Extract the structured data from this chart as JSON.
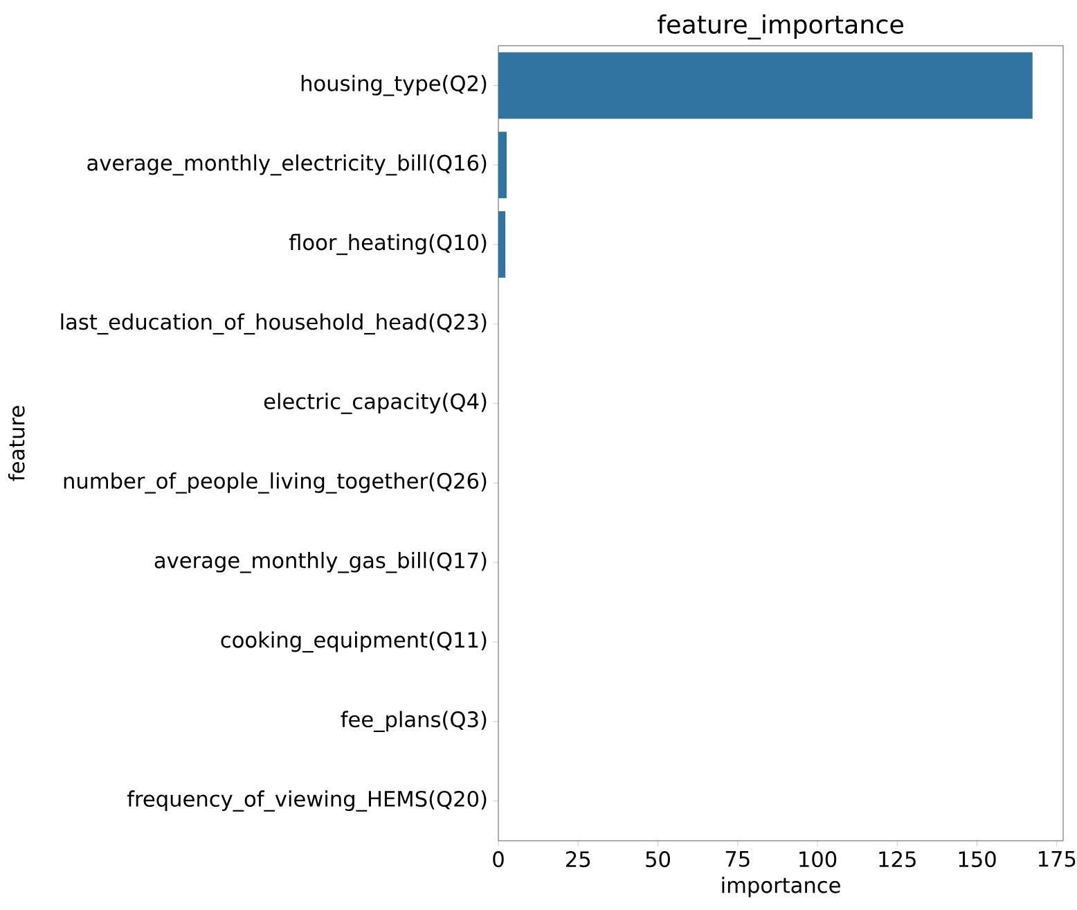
{
  "chart_data": {
    "type": "bar",
    "orientation": "horizontal",
    "title": "feature_importance",
    "xlabel": "importance",
    "ylabel": "feature",
    "categories": [
      "housing_type(Q2)",
      "average_monthly_electricity_bill(Q16)",
      "floor_heating(Q10)",
      "last_education_of_household_head(Q23)",
      "electric_capacity(Q4)",
      "number_of_people_living_together(Q26)",
      "average_monthly_gas_bill(Q17)",
      "cooking_equipment(Q11)",
      "fee_plans(Q3)",
      "frequency_of_viewing_HEMS(Q20)"
    ],
    "values": [
      167.4,
      2.6,
      2.2,
      0,
      0,
      0,
      0,
      0,
      0,
      0
    ],
    "color": "#3274a1",
    "xlim": [
      0,
      177
    ],
    "xticks": [
      0,
      25,
      50,
      75,
      100,
      125,
      150,
      175
    ]
  }
}
